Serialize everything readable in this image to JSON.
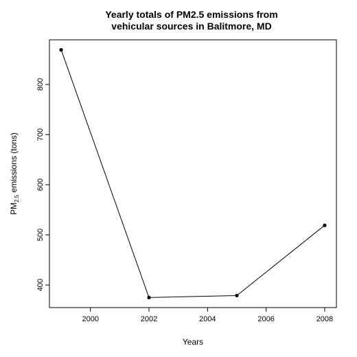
{
  "chart_data": {
    "type": "line",
    "title_lines": [
      "Yearly totals of PM2.5 emissions from",
      "vehicular sources in Balitmore, MD"
    ],
    "xlabel": "Years",
    "ylabel": {
      "base": "PM",
      "subscript": "2.5",
      "suffix": " emissions (tons)"
    },
    "x": [
      1999,
      2002,
      2005,
      2008
    ],
    "values": [
      869,
      375,
      379,
      519
    ],
    "xlim": [
      1998.6,
      2008.4
    ],
    "ylim": [
      355,
      889
    ],
    "x_ticks": [
      2000,
      2002,
      2004,
      2006,
      2008
    ],
    "y_ticks": [
      400,
      500,
      600,
      700,
      800
    ],
    "marker": "filled-circle",
    "line_color": "#000000",
    "grid": false
  }
}
